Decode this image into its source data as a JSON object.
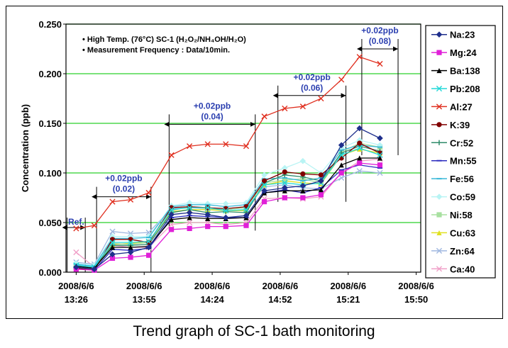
{
  "caption": "Trend graph of SC-1 bath monitoring",
  "chart_data": {
    "type": "line",
    "title": "",
    "xlabel": "",
    "ylabel": "Concentration (ppb)",
    "ylim": [
      0,
      0.25
    ],
    "yticks": [
      "0.000",
      "0.050",
      "0.100",
      "0.150",
      "0.200",
      "0.250"
    ],
    "ytick_values": [
      0,
      0.05,
      0.1,
      0.15,
      0.2,
      0.25
    ],
    "grid": "horizontal",
    "xtick_labels": [
      {
        "date": "2008/6/6",
        "time": "13:26",
        "x": 0
      },
      {
        "date": "2008/6/6",
        "time": "13:55",
        "x": 3
      },
      {
        "date": "2008/6/6",
        "time": "14:24",
        "x": 6
      },
      {
        "date": "2008/6/6",
        "time": "14:52",
        "x": 9
      },
      {
        "date": "2008/6/6",
        "time": "15:21",
        "x": 12
      },
      {
        "date": "2008/6/6",
        "time": "15:50",
        "x": 15
      }
    ],
    "x": [
      0,
      0.8,
      1.6,
      2.4,
      3.2,
      4.2,
      5.0,
      5.8,
      6.6,
      7.5,
      8.3,
      9.2,
      10.0,
      10.8,
      11.7,
      12.5,
      13.4,
      14.2,
      14.8
    ],
    "notes": [
      "High Temp. (76°C) SC-1 (H₂O₂/NH₄OH/H₂O)",
      "Measurement Frequency : Data/10min."
    ],
    "annotations": [
      {
        "text": "Ref.",
        "sub": "",
        "x1": -0.4,
        "x2": 0.4
      },
      {
        "text": "+0.02ppb",
        "sub": "(0.02)",
        "x1": 0.9,
        "x2": 3.3
      },
      {
        "text": "+0.02ppb",
        "sub": "(0.04)",
        "x1": 4.1,
        "x2": 7.9
      },
      {
        "text": "+0.02ppb",
        "sub": "(0.06)",
        "x1": 8.9,
        "x2": 11.9
      },
      {
        "text": "+0.02ppb",
        "sub": "(0.08)",
        "x1": 12.6,
        "x2": 14.2
      }
    ],
    "series": [
      {
        "name": "Na:23",
        "color": "#1f2f8c",
        "marker": "diamond",
        "values": [
          0.005,
          0.003,
          0.018,
          0.02,
          0.025,
          0.058,
          0.06,
          0.058,
          0.055,
          0.057,
          0.082,
          0.085,
          0.087,
          0.092,
          0.128,
          0.145,
          0.135,
          null,
          null
        ]
      },
      {
        "name": "Mg:24",
        "color": "#e020d8",
        "marker": "square",
        "values": [
          0.003,
          0.002,
          0.014,
          0.015,
          0.017,
          0.043,
          0.044,
          0.046,
          0.046,
          0.047,
          0.071,
          0.075,
          0.075,
          0.078,
          0.1,
          0.11,
          0.108,
          null,
          null
        ]
      },
      {
        "name": "Ba:138",
        "color": "#000000",
        "marker": "triangle",
        "values": [
          0.006,
          0.004,
          0.025,
          0.025,
          0.026,
          0.053,
          0.055,
          0.054,
          0.054,
          0.055,
          0.08,
          0.082,
          0.082,
          0.083,
          0.108,
          0.115,
          0.115,
          null,
          null
        ]
      },
      {
        "name": "Pb:208",
        "color": "#22d8d8",
        "marker": "x",
        "values": [
          0.007,
          0.005,
          0.03,
          0.03,
          0.031,
          0.063,
          0.065,
          0.065,
          0.062,
          0.063,
          0.088,
          0.09,
          0.088,
          0.09,
          0.118,
          0.125,
          0.118,
          null,
          null
        ]
      },
      {
        "name": "Al:27",
        "color": "#e03020",
        "marker": "x",
        "values": [
          0.044,
          0.047,
          0.071,
          0.073,
          0.08,
          0.118,
          0.127,
          0.129,
          0.129,
          0.127,
          0.157,
          0.165,
          0.167,
          0.175,
          0.194,
          0.217,
          0.21,
          null,
          null
        ]
      },
      {
        "name": "K:39",
        "color": "#800000",
        "marker": "circle",
        "values": [
          0.004,
          0.002,
          0.033,
          0.033,
          0.03,
          0.065,
          0.066,
          0.065,
          0.064,
          0.066,
          0.092,
          0.101,
          0.099,
          0.098,
          0.115,
          0.13,
          0.12,
          null,
          null
        ]
      },
      {
        "name": "Cr:52",
        "color": "#2e8b6a",
        "marker": "plus",
        "values": [
          0.006,
          0.004,
          0.027,
          0.027,
          0.028,
          0.06,
          0.063,
          0.06,
          0.061,
          0.06,
          0.09,
          0.098,
          0.096,
          0.092,
          0.12,
          0.127,
          0.122,
          null,
          null
        ]
      },
      {
        "name": "Mn:55",
        "color": "#2d2dbf",
        "marker": "dash",
        "values": [
          0.004,
          0.002,
          0.023,
          0.022,
          0.024,
          0.055,
          0.057,
          0.056,
          0.055,
          0.055,
          0.08,
          0.083,
          0.08,
          0.085,
          0.103,
          0.108,
          0.105,
          null,
          null
        ]
      },
      {
        "name": "Fe:56",
        "color": "#38b8d8",
        "marker": "dash",
        "values": [
          0.008,
          0.006,
          0.034,
          0.034,
          0.035,
          0.066,
          0.068,
          0.068,
          0.066,
          0.068,
          0.094,
          0.095,
          0.092,
          0.095,
          0.123,
          0.128,
          0.126,
          null,
          null
        ]
      },
      {
        "name": "Co:59",
        "color": "#b8f4f4",
        "marker": "diamond",
        "values": [
          0.009,
          0.007,
          0.036,
          0.036,
          0.036,
          0.067,
          0.07,
          0.069,
          0.069,
          0.07,
          0.098,
          0.105,
          0.112,
          0.1,
          0.125,
          0.133,
          0.128,
          null,
          null
        ]
      },
      {
        "name": "Ni:58",
        "color": "#a8e0a0",
        "marker": "square",
        "values": [
          0.005,
          0.003,
          0.029,
          0.028,
          0.03,
          0.062,
          0.066,
          0.064,
          0.063,
          0.065,
          0.09,
          0.093,
          0.094,
          0.09,
          0.121,
          0.13,
          0.126,
          null,
          null
        ]
      },
      {
        "name": "Cu:63",
        "color": "#e0e020",
        "marker": "triangle",
        "values": [
          0.006,
          0.004,
          0.028,
          0.029,
          0.03,
          0.061,
          0.063,
          0.063,
          0.062,
          0.062,
          0.088,
          0.092,
          0.09,
          0.089,
          0.118,
          0.124,
          0.12,
          null,
          null
        ]
      },
      {
        "name": "Zn:64",
        "color": "#a0b8e0",
        "marker": "x",
        "values": [
          0.01,
          0.008,
          0.041,
          0.039,
          0.04,
          0.064,
          0.065,
          0.064,
          0.063,
          0.065,
          0.086,
          0.088,
          0.085,
          0.084,
          0.095,
          0.102,
          0.1,
          null,
          null
        ]
      },
      {
        "name": "Ca:40",
        "color": "#f0a0c8",
        "marker": "x",
        "values": [
          0.02,
          0.005,
          0.027,
          0.025,
          0.025,
          0.048,
          0.05,
          0.05,
          0.048,
          0.05,
          0.074,
          0.075,
          0.074,
          0.076,
          0.1,
          0.112,
          0.114,
          null,
          null
        ]
      }
    ]
  }
}
